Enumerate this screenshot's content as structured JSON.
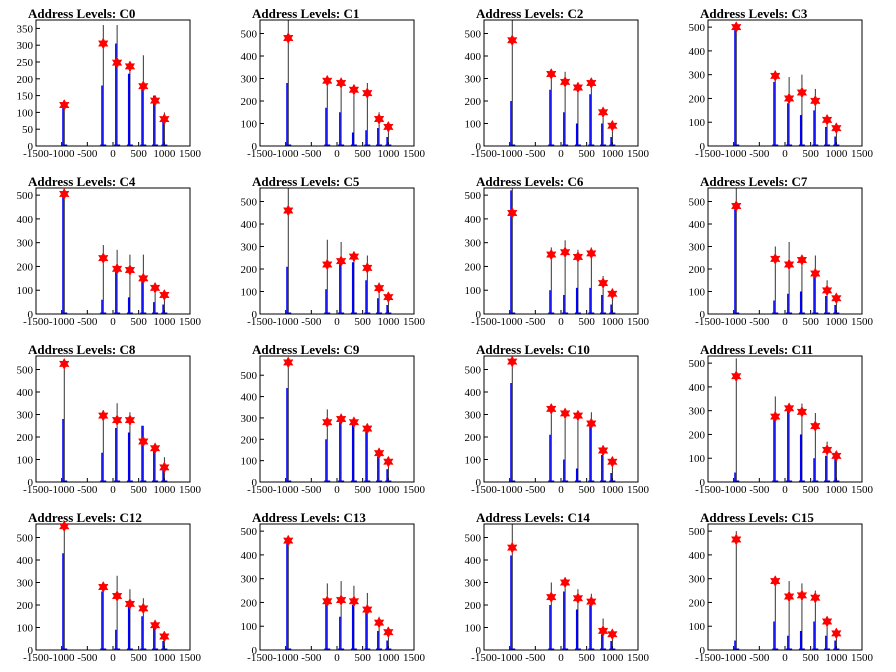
{
  "colors": {
    "histogram": "#0000ff",
    "spike": "#000000",
    "marker": "#ff0000",
    "frame": "#000000"
  },
  "chart_data": [
    {
      "type": "bar",
      "title": "Address Levels: C0",
      "xlim": [
        -1500,
        1500
      ],
      "ylim": [
        0,
        375
      ],
      "yticks": [
        0,
        50,
        100,
        150,
        200,
        250,
        300,
        350
      ],
      "xticks": [
        -1500,
        -1000,
        -500,
        0,
        500,
        1000,
        1500
      ],
      "xtick_labels": [
        "-1500",
        "-1000",
        "-500",
        "0",
        "500",
        "1000",
        "1500"
      ],
      "peaks_x": [
        -950,
        -190,
        80,
        330,
        590,
        820,
        1000
      ],
      "peaks_y": [
        122,
        305,
        248,
        237,
        178,
        135,
        80
      ],
      "blue_hist_y": [
        120,
        180,
        305,
        215,
        180,
        150,
        80
      ],
      "black_spike_y": [
        120,
        360,
        360,
        250,
        270,
        150,
        100
      ]
    },
    {
      "type": "bar",
      "title": "Address Levels: C1",
      "xlim": [
        -1500,
        1500
      ],
      "ylim": [
        0,
        560
      ],
      "yticks": [
        0,
        100,
        200,
        300,
        400,
        500
      ],
      "xticks": [
        -1500,
        -1000,
        -500,
        0,
        500,
        1000,
        1500
      ],
      "xtick_labels": [
        "-1500",
        "-1000",
        "-500",
        "0",
        "500",
        "1000",
        "1500"
      ],
      "peaks_x": [
        -950,
        -190,
        80,
        330,
        590,
        820,
        1000
      ],
      "peaks_y": [
        480,
        290,
        280,
        250,
        235,
        120,
        85
      ],
      "blue_hist_y": [
        280,
        170,
        150,
        60,
        70,
        80,
        40
      ],
      "black_spike_y": [
        560,
        290,
        280,
        270,
        280,
        150,
        100
      ]
    },
    {
      "type": "bar",
      "title": "Address Levels: C2",
      "xlim": [
        -1500,
        1500
      ],
      "ylim": [
        0,
        560
      ],
      "yticks": [
        0,
        100,
        200,
        300,
        400,
        500
      ],
      "xticks": [
        -1500,
        -1000,
        -500,
        0,
        500,
        1000,
        1500
      ],
      "xtick_labels": [
        "-1500",
        "-1000",
        "-500",
        "0",
        "500",
        "1000",
        "1500"
      ],
      "peaks_x": [
        -950,
        -190,
        80,
        330,
        590,
        820,
        1000
      ],
      "peaks_y": [
        470,
        320,
        285,
        260,
        280,
        150,
        90
      ],
      "blue_hist_y": [
        200,
        250,
        150,
        100,
        230,
        100,
        40
      ],
      "black_spike_y": [
        560,
        320,
        330,
        280,
        290,
        170,
        100
      ]
    },
    {
      "type": "bar",
      "title": "Address Levels: C3",
      "xlim": [
        -1500,
        1500
      ],
      "ylim": [
        0,
        530
      ],
      "yticks": [
        0,
        100,
        200,
        300,
        400,
        500
      ],
      "xticks": [
        -1500,
        -1000,
        -500,
        0,
        500,
        1000,
        1500
      ],
      "xtick_labels": [
        "-1500",
        "-1000",
        "-500",
        "0",
        "500",
        "1000",
        "1500"
      ],
      "peaks_x": [
        -950,
        -190,
        80,
        330,
        590,
        820,
        1000
      ],
      "peaks_y": [
        500,
        295,
        200,
        225,
        190,
        110,
        75
      ],
      "blue_hist_y": [
        500,
        270,
        180,
        130,
        150,
        80,
        40
      ],
      "black_spike_y": [
        520,
        300,
        290,
        300,
        240,
        130,
        80
      ]
    },
    {
      "type": "bar",
      "title": "Address Levels: C4",
      "xlim": [
        -1500,
        1500
      ],
      "ylim": [
        0,
        530
      ],
      "yticks": [
        0,
        100,
        200,
        300,
        400,
        500
      ],
      "xticks": [
        -1500,
        -1000,
        -500,
        0,
        500,
        1000,
        1500
      ],
      "xtick_labels": [
        "-1500",
        "-1000",
        "-500",
        "0",
        "500",
        "1000",
        "1500"
      ],
      "peaks_x": [
        -950,
        -190,
        80,
        330,
        590,
        820,
        1000
      ],
      "peaks_y": [
        505,
        235,
        190,
        185,
        150,
        110,
        80
      ],
      "blue_hist_y": [
        500,
        60,
        200,
        70,
        150,
        50,
        40
      ],
      "black_spike_y": [
        510,
        290,
        270,
        250,
        250,
        130,
        90
      ]
    },
    {
      "type": "bar",
      "title": "Address Levels: C5",
      "xlim": [
        -1500,
        1500
      ],
      "ylim": [
        0,
        560
      ],
      "yticks": [
        0,
        100,
        200,
        300,
        400,
        500
      ],
      "xticks": [
        -1500,
        -1000,
        -500,
        0,
        500,
        1000,
        1500
      ],
      "xtick_labels": [
        "-1500",
        "-1000",
        "-500",
        "0",
        "500",
        "1000",
        "1500"
      ],
      "peaks_x": [
        -950,
        -190,
        80,
        330,
        590,
        820,
        1000
      ],
      "peaks_y": [
        460,
        220,
        235,
        255,
        205,
        115,
        75
      ],
      "blue_hist_y": [
        210,
        110,
        240,
        230,
        150,
        70,
        40
      ],
      "black_spike_y": [
        560,
        330,
        320,
        270,
        260,
        140,
        90
      ]
    },
    {
      "type": "bar",
      "title": "Address Levels: C6",
      "xlim": [
        -1500,
        1500
      ],
      "ylim": [
        0,
        530
      ],
      "yticks": [
        0,
        100,
        200,
        300,
        400,
        500
      ],
      "xticks": [
        -1500,
        -1000,
        -500,
        0,
        500,
        1000,
        1500
      ],
      "xtick_labels": [
        "-1500",
        "-1000",
        "-500",
        "0",
        "500",
        "1000",
        "1500"
      ],
      "peaks_x": [
        -950,
        -190,
        80,
        330,
        590,
        820,
        1000
      ],
      "peaks_y": [
        425,
        250,
        260,
        240,
        255,
        130,
        85
      ],
      "blue_hist_y": [
        520,
        100,
        80,
        110,
        110,
        80,
        40
      ],
      "black_spike_y": [
        530,
        280,
        310,
        270,
        280,
        160,
        100
      ]
    },
    {
      "type": "bar",
      "title": "Address Levels: C7",
      "xlim": [
        -1500,
        1500
      ],
      "ylim": [
        0,
        560
      ],
      "yticks": [
        0,
        100,
        200,
        300,
        400,
        500
      ],
      "xticks": [
        -1500,
        -1000,
        -500,
        0,
        500,
        1000,
        1500
      ],
      "xtick_labels": [
        "-1500",
        "-1000",
        "-500",
        "0",
        "500",
        "1000",
        "1500"
      ],
      "peaks_x": [
        -950,
        -190,
        80,
        330,
        590,
        820,
        1000
      ],
      "peaks_y": [
        480,
        245,
        220,
        240,
        180,
        105,
        70
      ],
      "blue_hist_y": [
        480,
        60,
        90,
        100,
        180,
        80,
        40
      ],
      "black_spike_y": [
        560,
        300,
        320,
        250,
        260,
        150,
        90
      ]
    },
    {
      "type": "bar",
      "title": "Address Levels: C8",
      "xlim": [
        -1500,
        1500
      ],
      "ylim": [
        0,
        560
      ],
      "yticks": [
        0,
        100,
        200,
        300,
        400,
        500
      ],
      "xticks": [
        -1500,
        -1000,
        -500,
        0,
        500,
        1000,
        1500
      ],
      "xtick_labels": [
        "-1500",
        "-1000",
        "-500",
        "0",
        "500",
        "1000",
        "1500"
      ],
      "peaks_x": [
        -950,
        -190,
        80,
        330,
        590,
        820,
        1000
      ],
      "peaks_y": [
        525,
        295,
        275,
        275,
        180,
        150,
        65
      ],
      "blue_hist_y": [
        280,
        130,
        240,
        220,
        250,
        150,
        60
      ],
      "black_spike_y": [
        530,
        320,
        350,
        310,
        250,
        170,
        110
      ]
    },
    {
      "type": "bar",
      "title": "Address Levels: C9",
      "xlim": [
        -1500,
        1500
      ],
      "ylim": [
        0,
        590
      ],
      "yticks": [
        0,
        100,
        200,
        300,
        400,
        500
      ],
      "xticks": [
        -1500,
        -1000,
        -500,
        0,
        500,
        1000,
        1500
      ],
      "xtick_labels": [
        "-1500",
        "-1000",
        "-500",
        "0",
        "500",
        "1000",
        "1500"
      ],
      "peaks_x": [
        -950,
        -190,
        80,
        330,
        590,
        820,
        1000
      ],
      "peaks_y": [
        560,
        280,
        295,
        280,
        250,
        135,
        95
      ],
      "blue_hist_y": [
        440,
        200,
        280,
        270,
        240,
        120,
        60
      ],
      "black_spike_y": [
        570,
        340,
        300,
        290,
        270,
        150,
        100
      ]
    },
    {
      "type": "bar",
      "title": "Address Levels: C10",
      "xlim": [
        -1500,
        1500
      ],
      "ylim": [
        0,
        560
      ],
      "yticks": [
        0,
        100,
        200,
        300,
        400,
        500
      ],
      "xticks": [
        -1500,
        -1000,
        -500,
        0,
        500,
        1000,
        1500
      ],
      "xtick_labels": [
        "-1500",
        "-1000",
        "-500",
        "0",
        "500",
        "1000",
        "1500"
      ],
      "peaks_x": [
        -950,
        -190,
        80,
        330,
        590,
        820,
        1000
      ],
      "peaks_y": [
        535,
        325,
        305,
        295,
        260,
        140,
        90
      ],
      "blue_hist_y": [
        440,
        210,
        100,
        60,
        250,
        120,
        40
      ],
      "black_spike_y": [
        550,
        330,
        310,
        310,
        310,
        150,
        100
      ]
    },
    {
      "type": "bar",
      "title": "Address Levels: C11",
      "xlim": [
        -1500,
        1500
      ],
      "ylim": [
        0,
        530
      ],
      "yticks": [
        0,
        100,
        200,
        300,
        400,
        500
      ],
      "xticks": [
        -1500,
        -1000,
        -500,
        0,
        500,
        1000,
        1500
      ],
      "xtick_labels": [
        "-1500",
        "-1000",
        "-500",
        "0",
        "500",
        "1000",
        "1500"
      ],
      "peaks_x": [
        -950,
        -190,
        80,
        330,
        590,
        820,
        1000
      ],
      "peaks_y": [
        445,
        275,
        310,
        295,
        235,
        135,
        110
      ],
      "blue_hist_y": [
        40,
        280,
        300,
        200,
        100,
        110,
        100
      ],
      "black_spike_y": [
        520,
        360,
        320,
        330,
        290,
        170,
        120
      ]
    },
    {
      "type": "bar",
      "title": "Address Levels: C12",
      "xlim": [
        -1500,
        1500
      ],
      "ylim": [
        0,
        560
      ],
      "yticks": [
        0,
        100,
        200,
        300,
        400,
        500
      ],
      "xticks": [
        -1500,
        -1000,
        -500,
        0,
        500,
        1000,
        1500
      ],
      "xtick_labels": [
        "-1500",
        "-1000",
        "-500",
        "0",
        "500",
        "1000",
        "1500"
      ],
      "peaks_x": [
        -950,
        -190,
        80,
        330,
        590,
        820,
        1000
      ],
      "peaks_y": [
        550,
        280,
        240,
        205,
        185,
        110,
        60
      ],
      "blue_hist_y": [
        430,
        260,
        90,
        200,
        150,
        100,
        40
      ],
      "black_spike_y": [
        570,
        290,
        330,
        270,
        230,
        120,
        80
      ]
    },
    {
      "type": "bar",
      "title": "Address Levels: C13",
      "xlim": [
        -1500,
        1500
      ],
      "ylim": [
        0,
        530
      ],
      "yticks": [
        0,
        100,
        200,
        300,
        400,
        500
      ],
      "xticks": [
        -1500,
        -1000,
        -500,
        0,
        500,
        1000,
        1500
      ],
      "xtick_labels": [
        "-1500",
        "-1000",
        "-500",
        "0",
        "500",
        "1000",
        "1500"
      ],
      "peaks_x": [
        -950,
        -190,
        80,
        330,
        590,
        820,
        1000
      ],
      "peaks_y": [
        460,
        205,
        210,
        205,
        170,
        115,
        75
      ],
      "blue_hist_y": [
        460,
        200,
        140,
        190,
        160,
        80,
        40
      ],
      "black_spike_y": [
        470,
        280,
        290,
        270,
        240,
        140,
        90
      ]
    },
    {
      "type": "bar",
      "title": "Address Levels: C14",
      "xlim": [
        -1500,
        1500
      ],
      "ylim": [
        0,
        560
      ],
      "yticks": [
        0,
        100,
        200,
        300,
        400,
        500
      ],
      "xticks": [
        -1500,
        -1000,
        -500,
        0,
        500,
        1000,
        1500
      ],
      "xtick_labels": [
        "-1500",
        "-1000",
        "-500",
        "0",
        "500",
        "1000",
        "1500"
      ],
      "peaks_x": [
        -950,
        -190,
        80,
        330,
        590,
        820,
        1000
      ],
      "peaks_y": [
        455,
        235,
        300,
        230,
        215,
        85,
        70
      ],
      "blue_hist_y": [
        420,
        200,
        260,
        180,
        200,
        70,
        40
      ],
      "black_spike_y": [
        560,
        300,
        310,
        270,
        250,
        140,
        90
      ]
    },
    {
      "type": "bar",
      "title": "Address Levels: C15",
      "xlim": [
        -1500,
        1500
      ],
      "ylim": [
        0,
        530
      ],
      "yticks": [
        0,
        100,
        200,
        300,
        400,
        500
      ],
      "xticks": [
        -1500,
        -1000,
        -500,
        0,
        500,
        1000,
        1500
      ],
      "xtick_labels": [
        "-1500",
        "-1000",
        "-500",
        "0",
        "500",
        "1000",
        "1500"
      ],
      "peaks_x": [
        -950,
        -190,
        80,
        330,
        590,
        820,
        1000
      ],
      "peaks_y": [
        465,
        290,
        225,
        230,
        220,
        120,
        70
      ],
      "blue_hist_y": [
        40,
        120,
        60,
        80,
        120,
        60,
        40
      ],
      "black_spike_y": [
        500,
        290,
        290,
        280,
        250,
        130,
        90
      ]
    }
  ]
}
